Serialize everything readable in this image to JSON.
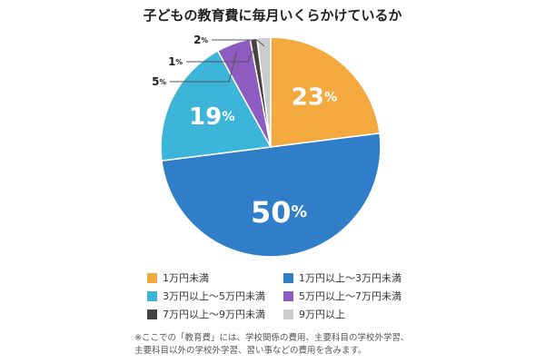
{
  "chart_data": {
    "type": "pie",
    "title": "子どもの教育費に毎月いくらかけているか",
    "start_angle_deg": 0,
    "direction": "clockwise",
    "slices": [
      {
        "label": "1万円未満",
        "value": 23,
        "display": "23",
        "unit": "%",
        "color": "#F4A93F"
      },
      {
        "label": "1万円以上～3万円未満",
        "value": 50,
        "display": "50",
        "unit": "%",
        "color": "#2F7EC7"
      },
      {
        "label": "3万円以上～5万円未満",
        "value": 19,
        "display": "19",
        "unit": "%",
        "color": "#3DB5D8"
      },
      {
        "label": "5万円以上～7万円未満",
        "value": 5,
        "display": "5",
        "unit": "%",
        "color": "#8E5BC0"
      },
      {
        "label": "7万円以上～9万円未満",
        "value": 1,
        "display": "1",
        "unit": "%",
        "color": "#444444"
      },
      {
        "label": "9万円以上",
        "value": 2,
        "display": "2",
        "unit": "%",
        "color": "#CCCCCC"
      }
    ],
    "legend_position": "bottom"
  },
  "note": {
    "line1": "※ここでの「教育費」には、学校関係の費用、主要科目の学校外学習、",
    "line2": "主要科目以外の学校外学習、習い事などの費用を含みます。"
  }
}
